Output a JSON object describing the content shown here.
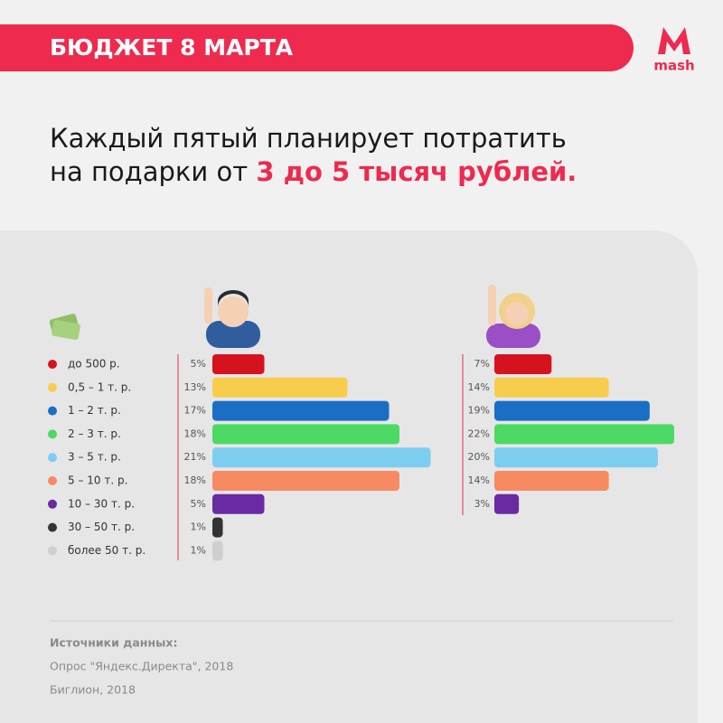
{
  "header": {
    "title": "БЮДЖЕТ 8 МАРТА",
    "logo": "mash"
  },
  "headline": {
    "line1": "Каждый пятый планирует потратить",
    "line2": "на подарки от ",
    "highlight": "3 до 5 тысяч рублей."
  },
  "chart_data": {
    "type": "bar",
    "orientation": "horizontal",
    "categories": [
      "до 500 р.",
      "0,5 – 1 т. р.",
      "1 – 2 т. р.",
      "2 – 3 т. р.",
      "3 – 5 т. р.",
      "5 – 10 т. р.",
      "10 – 30 т. р.",
      "30 – 50 т. р.",
      "более 50 т. р."
    ],
    "colors": [
      "#d7121f",
      "#f8cd4e",
      "#1a6fc4",
      "#4cd964",
      "#7dcdf0",
      "#f88a62",
      "#6a2aa3",
      "#333333",
      "#cfcfcf"
    ],
    "series": [
      {
        "values": [
          5,
          13,
          17,
          18,
          21,
          18,
          5,
          1,
          1
        ],
        "value_labels": [
          "5%",
          "13%",
          "17%",
          "18%",
          "21%",
          "18%",
          "5%",
          "1%",
          "1%"
        ],
        "xlim": [
          0,
          22
        ]
      },
      {
        "values": [
          7,
          14,
          19,
          22,
          20,
          14,
          3,
          null,
          null
        ],
        "value_labels": [
          "7%",
          "14%",
          "19%",
          "22%",
          "20%",
          "14%",
          "3%",
          null,
          null
        ],
        "xlim": [
          0,
          22
        ]
      }
    ]
  },
  "sources": {
    "heading": "Источники данных:",
    "items": [
      "Опрос \"Яндекс.Директа\", 2018",
      "Биглион, 2018"
    ]
  }
}
